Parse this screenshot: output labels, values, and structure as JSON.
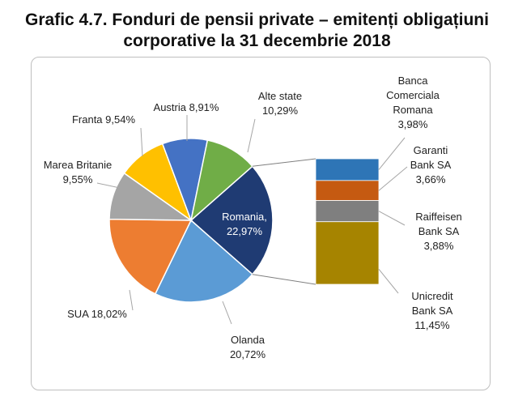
{
  "title_line1": "Grafic 4.7. Fonduri de pensii private – emitenți obligațiuni",
  "title_line2": "corporative la 31 decembrie 2018",
  "chart_data": {
    "type": "pie",
    "categories": [
      "Romania",
      "Olanda",
      "SUA",
      "Marea Britanie",
      "Franta",
      "Austria",
      "Alte state"
    ],
    "values": [
      22.97,
      20.72,
      18.02,
      9.55,
      9.54,
      8.91,
      10.29
    ],
    "value_unit": "%",
    "colors": [
      "#1f3b73",
      "#5b9bd5",
      "#ed7d31",
      "#a5a5a5",
      "#ffc000",
      "#4472c4",
      "#70ad47"
    ],
    "labels": [
      [
        "Romania,",
        "22,97%"
      ],
      [
        "Olanda",
        "20,72%"
      ],
      [
        "SUA 18,02%"
      ],
      [
        "Marea Britanie",
        "9,55%"
      ],
      [
        "Franta 9,54%"
      ],
      [
        "Austria 8,91%"
      ],
      [
        "Alte state",
        "10,29%"
      ]
    ],
    "breakdown": {
      "of_category": "Romania",
      "type": "stacked-bar",
      "categories": [
        "Banca Comerciala Romana",
        "Garanti Bank SA",
        "Raiffeisen Bank SA",
        "Unicredit Bank SA"
      ],
      "values": [
        3.98,
        3.66,
        3.88,
        11.45
      ],
      "value_unit": "%",
      "colors": [
        "#2e75b6",
        "#c55a11",
        "#7f7f7f",
        "#a68400"
      ],
      "labels": [
        [
          "Banca",
          "Comerciala",
          "Romana",
          "3,98%"
        ],
        [
          "Garanti",
          "Bank SA",
          "3,66%"
        ],
        [
          "Raiffeisen",
          "Bank SA",
          "3,88%"
        ],
        [
          "Unicredit",
          "Bank SA",
          "11,45%"
        ]
      ]
    }
  }
}
